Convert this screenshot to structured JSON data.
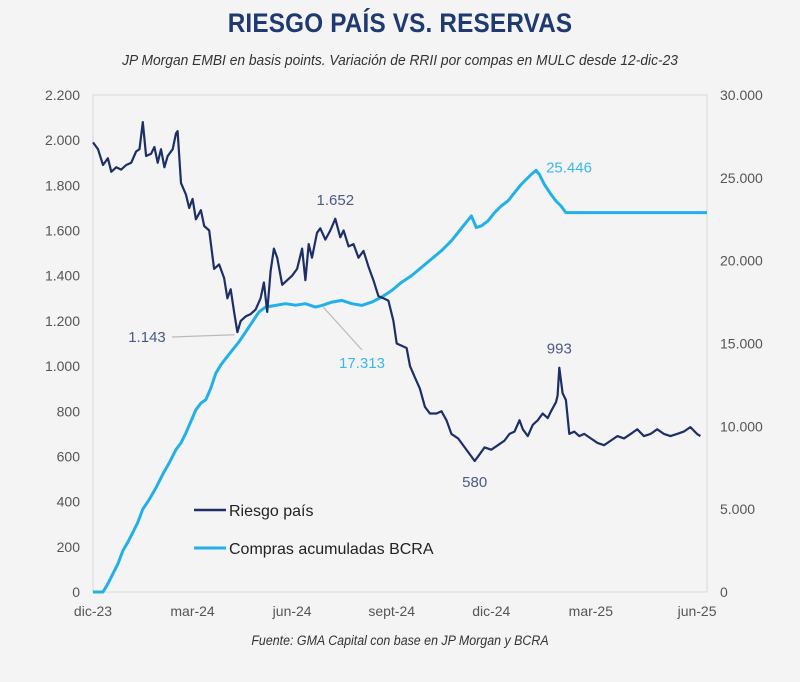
{
  "header": {
    "title": "RIESGO PAÍS VS. RESERVAS",
    "subtitle": "JP Morgan EMBI en basis points. Variación de RRII por compas en MULC desde 12-dic-23"
  },
  "footer": {
    "source": "Fuente: GMA Capital con base en JP Morgan y BCRA"
  },
  "chart_data": {
    "type": "line",
    "title": "RIESGO PAÍS VS. RESERVAS",
    "subtitle": "JP Morgan EMBI en basis points. Variación de RRII por compas en MULC desde 12-dic-23",
    "xlabel": "",
    "ylabel": "",
    "x_unit": "months since dic-23",
    "x_range": [
      0,
      18.5
    ],
    "x_ticks": [
      {
        "label": "dic-23",
        "x": 0
      },
      {
        "label": "mar-24",
        "x": 3
      },
      {
        "label": "jun-24",
        "x": 6
      },
      {
        "label": "sept-24",
        "x": 9
      },
      {
        "label": "dic-24",
        "x": 12
      },
      {
        "label": "mar-25",
        "x": 15
      },
      {
        "label": "jun-25",
        "x": 18
      }
    ],
    "y_left": {
      "range": [
        0,
        2200
      ],
      "ticks": [
        "0",
        "200",
        "400",
        "600",
        "800",
        "1.000",
        "1.200",
        "1.400",
        "1.600",
        "1.800",
        "2.000",
        "2.200"
      ],
      "tick_values": [
        0,
        200,
        400,
        600,
        800,
        1000,
        1200,
        1400,
        1600,
        1800,
        2000,
        2200
      ]
    },
    "y_right": {
      "range": [
        0,
        30000
      ],
      "ticks": [
        "0",
        "5.000",
        "10.000",
        "15.000",
        "20.000",
        "25.000",
        "30.000"
      ],
      "tick_values": [
        0,
        5000,
        10000,
        15000,
        20000,
        25000,
        30000
      ]
    },
    "grid": false,
    "legend": {
      "position": "bottom-left-inside",
      "entries": [
        "Riesgo país",
        "Compras acumuladas BCRA"
      ]
    },
    "series": [
      {
        "name": "Riesgo país",
        "axis": "left",
        "color": "#1c2f66",
        "points": [
          [
            0,
            1990
          ],
          [
            0.15,
            1960
          ],
          [
            0.3,
            1890
          ],
          [
            0.45,
            1920
          ],
          [
            0.55,
            1860
          ],
          [
            0.7,
            1880
          ],
          [
            0.85,
            1870
          ],
          [
            1.0,
            1890
          ],
          [
            1.15,
            1900
          ],
          [
            1.3,
            1950
          ],
          [
            1.4,
            1960
          ],
          [
            1.5,
            2080
          ],
          [
            1.6,
            1930
          ],
          [
            1.75,
            1940
          ],
          [
            1.85,
            1970
          ],
          [
            1.95,
            1900
          ],
          [
            2.05,
            1960
          ],
          [
            2.15,
            1880
          ],
          [
            2.25,
            1930
          ],
          [
            2.4,
            1960
          ],
          [
            2.5,
            2030
          ],
          [
            2.55,
            2040
          ],
          [
            2.65,
            1810
          ],
          [
            2.8,
            1760
          ],
          [
            2.9,
            1700
          ],
          [
            3.0,
            1740
          ],
          [
            3.1,
            1650
          ],
          [
            3.25,
            1690
          ],
          [
            3.35,
            1620
          ],
          [
            3.5,
            1600
          ],
          [
            3.65,
            1430
          ],
          [
            3.8,
            1450
          ],
          [
            3.95,
            1390
          ],
          [
            4.05,
            1300
          ],
          [
            4.15,
            1340
          ],
          [
            4.25,
            1240
          ],
          [
            4.35,
            1150
          ],
          [
            4.45,
            1200
          ],
          [
            4.6,
            1220
          ],
          [
            4.75,
            1230
          ],
          [
            4.9,
            1250
          ],
          [
            5.05,
            1300
          ],
          [
            5.15,
            1370
          ],
          [
            5.25,
            1240
          ],
          [
            5.35,
            1420
          ],
          [
            5.45,
            1520
          ],
          [
            5.55,
            1480
          ],
          [
            5.7,
            1360
          ],
          [
            5.85,
            1380
          ],
          [
            6.0,
            1400
          ],
          [
            6.15,
            1430
          ],
          [
            6.3,
            1520
          ],
          [
            6.4,
            1380
          ],
          [
            6.5,
            1540
          ],
          [
            6.6,
            1480
          ],
          [
            6.75,
            1590
          ],
          [
            6.85,
            1610
          ],
          [
            7.0,
            1560
          ],
          [
            7.15,
            1600
          ],
          [
            7.3,
            1652
          ],
          [
            7.45,
            1570
          ],
          [
            7.55,
            1600
          ],
          [
            7.7,
            1530
          ],
          [
            7.85,
            1540
          ],
          [
            8.0,
            1480
          ],
          [
            8.15,
            1510
          ],
          [
            8.3,
            1440
          ],
          [
            8.45,
            1380
          ],
          [
            8.6,
            1310
          ],
          [
            8.75,
            1300
          ],
          [
            8.9,
            1290
          ],
          [
            9.05,
            1200
          ],
          [
            9.15,
            1100
          ],
          [
            9.3,
            1090
          ],
          [
            9.45,
            1080
          ],
          [
            9.55,
            1000
          ],
          [
            9.7,
            950
          ],
          [
            9.85,
            900
          ],
          [
            10.0,
            820
          ],
          [
            10.15,
            790
          ],
          [
            10.35,
            790
          ],
          [
            10.5,
            800
          ],
          [
            10.65,
            760
          ],
          [
            10.8,
            700
          ],
          [
            11.0,
            680
          ],
          [
            11.2,
            640
          ],
          [
            11.4,
            600
          ],
          [
            11.5,
            580
          ],
          [
            11.65,
            610
          ],
          [
            11.8,
            640
          ],
          [
            12.0,
            630
          ],
          [
            12.2,
            650
          ],
          [
            12.4,
            670
          ],
          [
            12.55,
            700
          ],
          [
            12.7,
            710
          ],
          [
            12.85,
            760
          ],
          [
            12.95,
            720
          ],
          [
            13.1,
            690
          ],
          [
            13.25,
            740
          ],
          [
            13.4,
            760
          ],
          [
            13.55,
            790
          ],
          [
            13.7,
            770
          ],
          [
            13.8,
            800
          ],
          [
            13.95,
            840
          ],
          [
            14.0,
            870
          ],
          [
            14.05,
            993
          ],
          [
            14.15,
            880
          ],
          [
            14.25,
            850
          ],
          [
            14.35,
            700
          ],
          [
            14.5,
            710
          ],
          [
            14.65,
            690
          ],
          [
            14.8,
            700
          ],
          [
            15.0,
            680
          ],
          [
            15.2,
            660
          ],
          [
            15.4,
            650
          ],
          [
            15.6,
            670
          ],
          [
            15.8,
            690
          ],
          [
            16.0,
            680
          ],
          [
            16.2,
            700
          ],
          [
            16.4,
            720
          ],
          [
            16.6,
            690
          ],
          [
            16.8,
            700
          ],
          [
            17.0,
            720
          ],
          [
            17.2,
            700
          ],
          [
            17.4,
            690
          ],
          [
            17.6,
            700
          ],
          [
            17.8,
            710
          ],
          [
            18.0,
            730
          ],
          [
            18.2,
            700
          ],
          [
            18.3,
            690
          ]
        ],
        "annotations": [
          {
            "label": "1.143",
            "value": 1143,
            "x": 4.35
          },
          {
            "label": "1.652",
            "value": 1652,
            "x": 7.3
          },
          {
            "label": "580",
            "value": 580,
            "x": 11.5
          },
          {
            "label": "993",
            "value": 993,
            "x": 14.05
          }
        ]
      },
      {
        "name": "Compras acumuladas BCRA",
        "axis": "right",
        "color": "#22b0e8",
        "points": [
          [
            0,
            0
          ],
          [
            0.3,
            0
          ],
          [
            0.45,
            500
          ],
          [
            0.6,
            1100
          ],
          [
            0.75,
            1700
          ],
          [
            0.9,
            2500
          ],
          [
            1.05,
            3000
          ],
          [
            1.2,
            3600
          ],
          [
            1.35,
            4200
          ],
          [
            1.5,
            5000
          ],
          [
            1.7,
            5600
          ],
          [
            1.9,
            6300
          ],
          [
            2.1,
            7100
          ],
          [
            2.3,
            7800
          ],
          [
            2.5,
            8600
          ],
          [
            2.65,
            9000
          ],
          [
            2.8,
            9600
          ],
          [
            2.95,
            10300
          ],
          [
            3.1,
            11000
          ],
          [
            3.25,
            11400
          ],
          [
            3.4,
            11600
          ],
          [
            3.55,
            12300
          ],
          [
            3.7,
            13200
          ],
          [
            3.85,
            13700
          ],
          [
            4.0,
            14100
          ],
          [
            4.2,
            14600
          ],
          [
            4.4,
            15100
          ],
          [
            4.6,
            15700
          ],
          [
            4.8,
            16300
          ],
          [
            5.0,
            16900
          ],
          [
            5.2,
            17200
          ],
          [
            5.5,
            17300
          ],
          [
            5.8,
            17400
          ],
          [
            6.1,
            17313
          ],
          [
            6.4,
            17400
          ],
          [
            6.7,
            17200
          ],
          [
            6.9,
            17300
          ],
          [
            7.2,
            17500
          ],
          [
            7.5,
            17600
          ],
          [
            7.8,
            17400
          ],
          [
            8.1,
            17300
          ],
          [
            8.4,
            17500
          ],
          [
            8.7,
            17800
          ],
          [
            9.0,
            18200
          ],
          [
            9.3,
            18700
          ],
          [
            9.6,
            19100
          ],
          [
            9.9,
            19600
          ],
          [
            10.2,
            20100
          ],
          [
            10.5,
            20600
          ],
          [
            10.8,
            21200
          ],
          [
            11.0,
            21700
          ],
          [
            11.2,
            22200
          ],
          [
            11.4,
            22700
          ],
          [
            11.55,
            22000
          ],
          [
            11.7,
            22100
          ],
          [
            11.9,
            22400
          ],
          [
            12.1,
            22900
          ],
          [
            12.3,
            23300
          ],
          [
            12.5,
            23600
          ],
          [
            12.7,
            24100
          ],
          [
            12.9,
            24600
          ],
          [
            13.05,
            24900
          ],
          [
            13.2,
            25200
          ],
          [
            13.35,
            25446
          ],
          [
            13.45,
            25200
          ],
          [
            13.6,
            24600
          ],
          [
            13.8,
            24000
          ],
          [
            13.95,
            23600
          ],
          [
            14.1,
            23300
          ],
          [
            14.25,
            22900
          ],
          [
            14.5,
            22900
          ],
          [
            15.0,
            22900
          ],
          [
            16.0,
            22900
          ],
          [
            17.0,
            22900
          ],
          [
            18.0,
            22900
          ],
          [
            18.5,
            22900
          ]
        ],
        "annotations": [
          {
            "label": "17.313",
            "value": 17313,
            "x": 7.0
          },
          {
            "label": "25.446",
            "value": 25446,
            "x": 13.35
          }
        ]
      }
    ]
  }
}
